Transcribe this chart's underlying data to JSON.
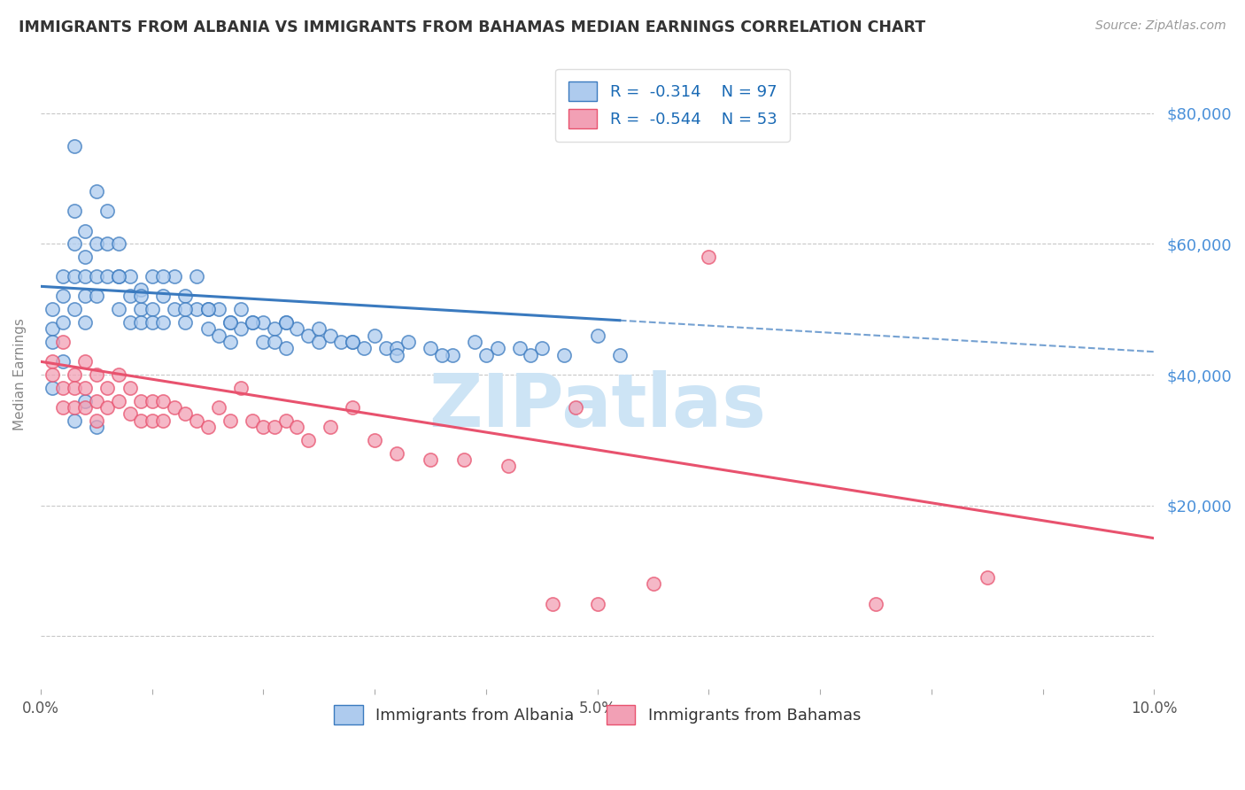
{
  "title": "IMMIGRANTS FROM ALBANIA VS IMMIGRANTS FROM BAHAMAS MEDIAN EARNINGS CORRELATION CHART",
  "source": "Source: ZipAtlas.com",
  "ylabel": "Median Earnings",
  "xlim": [
    0.0,
    0.1
  ],
  "ylim": [
    -8000,
    88000
  ],
  "yticks": [
    0,
    20000,
    40000,
    60000,
    80000
  ],
  "albania_R": "-0.314",
  "albania_N": "97",
  "bahamas_R": "-0.544",
  "bahamas_N": "53",
  "albania_color": "#aecbee",
  "albania_line_color": "#3a7abf",
  "bahamas_color": "#f2a0b5",
  "bahamas_line_color": "#e8526e",
  "background_color": "#ffffff",
  "grid_color": "#c8c8c8",
  "title_color": "#333333",
  "tick_label_color": "#4a90d9",
  "watermark_text": "ZIPatlas",
  "watermark_color": "#cde4f5",
  "legend_label_albania": "Immigrants from Albania",
  "legend_label_bahamas": "Immigrants from Bahamas",
  "albania_line_x0": 0.0,
  "albania_line_y0": 53500,
  "albania_line_x1": 0.1,
  "albania_line_y1": 43500,
  "bahamas_line_x0": 0.0,
  "bahamas_line_y0": 42000,
  "bahamas_line_x1": 0.1,
  "bahamas_line_y1": 15000,
  "albania_x": [
    0.001,
    0.001,
    0.001,
    0.002,
    0.002,
    0.002,
    0.003,
    0.003,
    0.003,
    0.003,
    0.004,
    0.004,
    0.004,
    0.004,
    0.004,
    0.005,
    0.005,
    0.005,
    0.006,
    0.006,
    0.006,
    0.007,
    0.007,
    0.007,
    0.008,
    0.008,
    0.008,
    0.009,
    0.009,
    0.009,
    0.01,
    0.01,
    0.01,
    0.011,
    0.011,
    0.012,
    0.012,
    0.013,
    0.013,
    0.014,
    0.014,
    0.015,
    0.015,
    0.016,
    0.016,
    0.017,
    0.017,
    0.018,
    0.018,
    0.019,
    0.02,
    0.02,
    0.021,
    0.021,
    0.022,
    0.022,
    0.023,
    0.024,
    0.025,
    0.026,
    0.027,
    0.028,
    0.029,
    0.03,
    0.031,
    0.032,
    0.033,
    0.035,
    0.037,
    0.039,
    0.041,
    0.043,
    0.045,
    0.047,
    0.05,
    0.052,
    0.003,
    0.005,
    0.007,
    0.009,
    0.011,
    0.013,
    0.015,
    0.017,
    0.019,
    0.022,
    0.025,
    0.028,
    0.032,
    0.036,
    0.04,
    0.044,
    0.001,
    0.002,
    0.003,
    0.004,
    0.005
  ],
  "albania_y": [
    47000,
    50000,
    45000,
    52000,
    48000,
    55000,
    60000,
    55000,
    50000,
    65000,
    52000,
    58000,
    62000,
    55000,
    48000,
    55000,
    60000,
    52000,
    65000,
    60000,
    55000,
    55000,
    50000,
    60000,
    52000,
    48000,
    55000,
    53000,
    50000,
    48000,
    55000,
    50000,
    48000,
    52000,
    48000,
    55000,
    50000,
    52000,
    48000,
    55000,
    50000,
    50000,
    47000,
    50000,
    46000,
    48000,
    45000,
    50000,
    47000,
    48000,
    48000,
    45000,
    47000,
    45000,
    48000,
    44000,
    47000,
    46000,
    45000,
    46000,
    45000,
    45000,
    44000,
    46000,
    44000,
    44000,
    45000,
    44000,
    43000,
    45000,
    44000,
    44000,
    44000,
    43000,
    46000,
    43000,
    75000,
    68000,
    55000,
    52000,
    55000,
    50000,
    50000,
    48000,
    48000,
    48000,
    47000,
    45000,
    43000,
    43000,
    43000,
    43000,
    38000,
    42000,
    33000,
    36000,
    32000
  ],
  "bahamas_x": [
    0.001,
    0.001,
    0.002,
    0.002,
    0.002,
    0.003,
    0.003,
    0.003,
    0.004,
    0.004,
    0.004,
    0.005,
    0.005,
    0.005,
    0.006,
    0.006,
    0.007,
    0.007,
    0.008,
    0.008,
    0.009,
    0.009,
    0.01,
    0.01,
    0.011,
    0.011,
    0.012,
    0.013,
    0.014,
    0.015,
    0.016,
    0.017,
    0.018,
    0.019,
    0.02,
    0.021,
    0.022,
    0.023,
    0.024,
    0.026,
    0.028,
    0.03,
    0.032,
    0.035,
    0.038,
    0.042,
    0.046,
    0.05,
    0.055,
    0.06,
    0.048,
    0.075,
    0.085
  ],
  "bahamas_y": [
    42000,
    40000,
    45000,
    38000,
    35000,
    40000,
    38000,
    35000,
    42000,
    38000,
    35000,
    40000,
    36000,
    33000,
    38000,
    35000,
    40000,
    36000,
    38000,
    34000,
    36000,
    33000,
    36000,
    33000,
    36000,
    33000,
    35000,
    34000,
    33000,
    32000,
    35000,
    33000,
    38000,
    33000,
    32000,
    32000,
    33000,
    32000,
    30000,
    32000,
    35000,
    30000,
    28000,
    27000,
    27000,
    26000,
    5000,
    5000,
    8000,
    58000,
    35000,
    5000,
    9000
  ]
}
